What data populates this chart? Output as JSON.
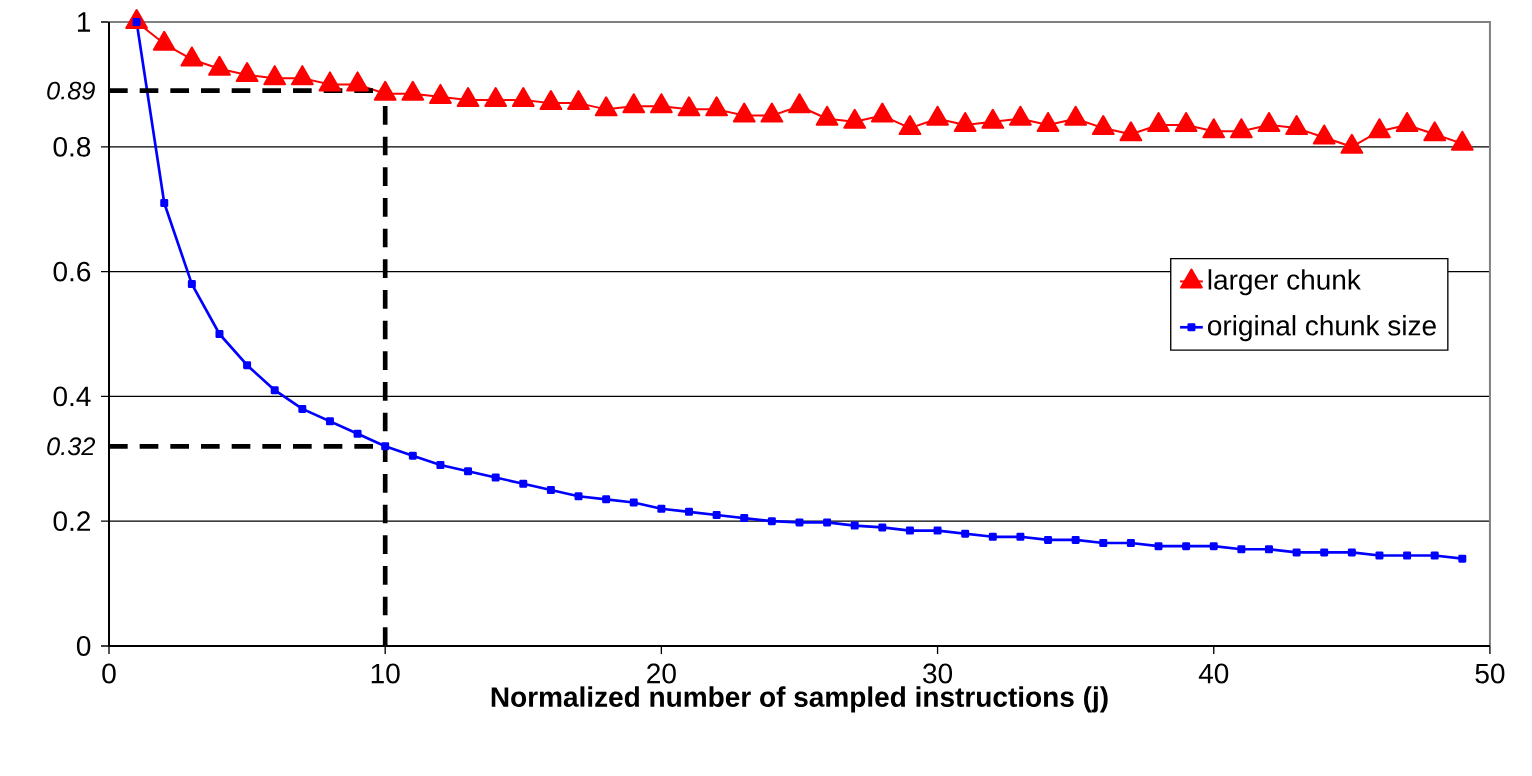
{
  "chart_data": {
    "type": "line",
    "xlabel": "Normalized number of sampled instructions (j)",
    "x": [
      1,
      2,
      3,
      4,
      5,
      6,
      7,
      8,
      9,
      10,
      11,
      12,
      13,
      14,
      15,
      16,
      17,
      18,
      19,
      20,
      21,
      22,
      23,
      24,
      25,
      26,
      27,
      28,
      29,
      30,
      31,
      32,
      33,
      34,
      35,
      36,
      37,
      38,
      39,
      40,
      41,
      42,
      43,
      44,
      45,
      46,
      47,
      48,
      49
    ],
    "series": [
      {
        "name": "larger chunk",
        "color": "#ff0000",
        "marker": "triangle",
        "values": [
          1.0,
          0.965,
          0.94,
          0.925,
          0.915,
          0.91,
          0.91,
          0.9,
          0.9,
          0.885,
          0.885,
          0.88,
          0.875,
          0.875,
          0.875,
          0.87,
          0.87,
          0.86,
          0.865,
          0.865,
          0.86,
          0.86,
          0.85,
          0.85,
          0.865,
          0.845,
          0.84,
          0.85,
          0.83,
          0.845,
          0.835,
          0.84,
          0.845,
          0.835,
          0.845,
          0.83,
          0.82,
          0.835,
          0.835,
          0.825,
          0.825,
          0.835,
          0.83,
          0.815,
          0.8,
          0.825,
          0.835,
          0.82,
          0.805
        ]
      },
      {
        "name": "original chunk size",
        "color": "#0000ff",
        "marker": "square",
        "values": [
          1.0,
          0.71,
          0.58,
          0.5,
          0.45,
          0.41,
          0.38,
          0.36,
          0.34,
          0.32,
          0.305,
          0.29,
          0.28,
          0.27,
          0.26,
          0.25,
          0.24,
          0.235,
          0.23,
          0.22,
          0.215,
          0.21,
          0.205,
          0.2,
          0.198,
          0.198,
          0.193,
          0.19,
          0.185,
          0.185,
          0.18,
          0.175,
          0.175,
          0.17,
          0.17,
          0.165,
          0.165,
          0.16,
          0.16,
          0.16,
          0.155,
          0.155,
          0.15,
          0.15,
          0.15,
          0.145,
          0.145,
          0.145,
          0.14
        ]
      }
    ],
    "xlim": [
      0,
      50
    ],
    "ylim": [
      0,
      1
    ],
    "xticks": [
      0,
      10,
      20,
      30,
      40,
      50
    ],
    "yticks": [
      0,
      0.2,
      0.4,
      0.6,
      0.8,
      1
    ],
    "grid": "y",
    "legend": "right",
    "line_style": "solid",
    "ref_lines": [
      {
        "axis": "y",
        "value": 0.89,
        "label": "0.89",
        "color": "#000000",
        "line_style": "dashed"
      },
      {
        "axis": "y",
        "value": 0.32,
        "label": "0.32",
        "color": "#000000",
        "line_style": "dashed"
      },
      {
        "axis": "x",
        "value": 10,
        "color": "#000000",
        "line_style": "dashed"
      }
    ]
  }
}
